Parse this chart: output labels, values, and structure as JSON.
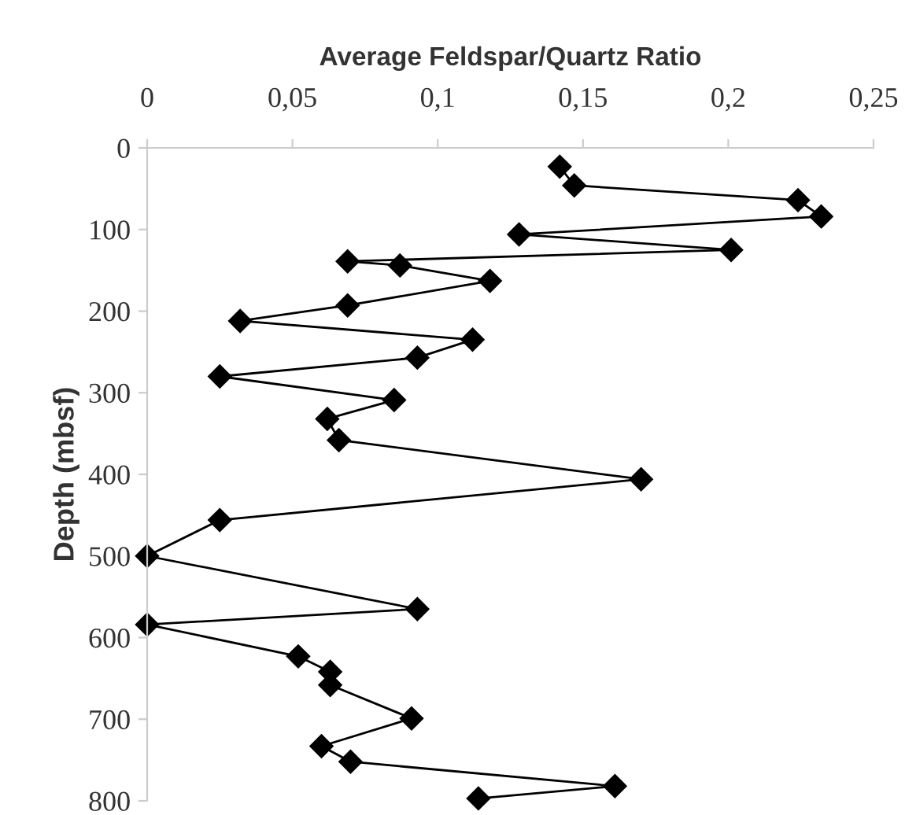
{
  "chart_data": {
    "type": "line",
    "xlabel": "Average Feldspar/Quartz Ratio",
    "ylabel": "Depth (mbsf)",
    "marker": "diamond",
    "line_style": "solid",
    "grid": false,
    "legend": false,
    "xlim": [
      0,
      0.25
    ],
    "xticks": [
      0,
      {
        "value": 0.05,
        "label": "0,05"
      },
      {
        "value": 0.1,
        "label": "0,1"
      },
      {
        "value": 0.15,
        "label": "0,15"
      },
      {
        "value": 0.2,
        "label": "0,2"
      },
      {
        "value": 0.25,
        "label": "0,25"
      }
    ],
    "ylim": [
      800,
      0
    ],
    "yticks": [
      0,
      100,
      200,
      300,
      400,
      500,
      600,
      700,
      800
    ],
    "series": [
      {
        "color": "#000000",
        "x": [
          0.142,
          0.147,
          0.224,
          0.232,
          0.128,
          0.201,
          0.069,
          0.087,
          0.118,
          0.069,
          0.032,
          0.112,
          0.093,
          0.025,
          0.085,
          0.062,
          0.066,
          0.17,
          0.025,
          0.0,
          0.093,
          0.0,
          0.052,
          0.063,
          0.063,
          0.091,
          0.06,
          0.07,
          0.161,
          0.114
        ],
        "values": [
          23,
          46,
          64,
          84,
          106,
          125,
          139,
          144,
          163,
          193,
          212,
          235,
          257,
          280,
          309,
          332,
          358,
          406,
          456,
          500,
          565,
          584,
          623,
          642,
          658,
          699,
          733,
          752,
          782,
          797
        ]
      }
    ]
  }
}
